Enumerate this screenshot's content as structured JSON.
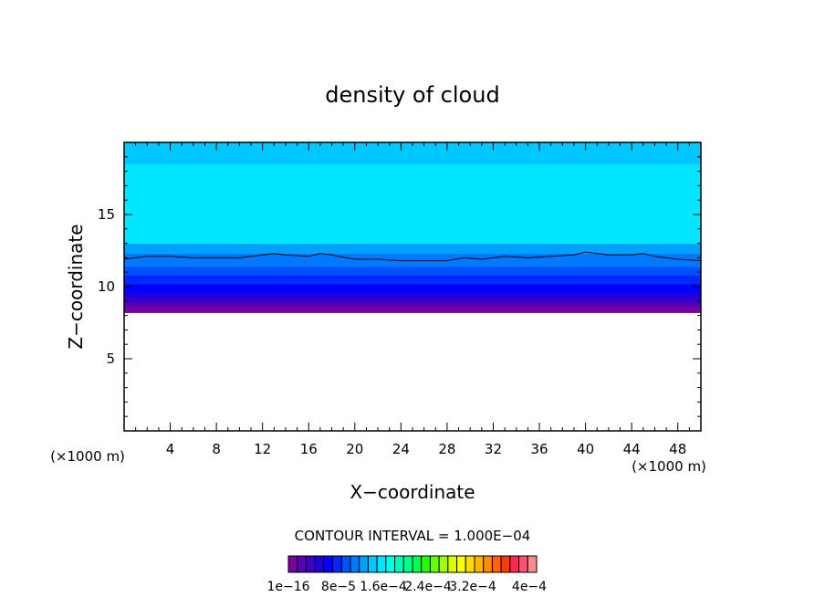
{
  "chart_data": {
    "type": "heatmap",
    "title": "density of cloud",
    "xlabel": "X−coordinate",
    "ylabel": "Z−coordinate",
    "x_unit_label": "(×1000 m)",
    "y_unit_label": "(×1000 m)",
    "xlim": [
      0,
      50
    ],
    "ylim": [
      0,
      20
    ],
    "xticks": [
      4,
      8,
      12,
      16,
      20,
      24,
      28,
      32,
      36,
      40,
      44,
      48
    ],
    "yticks": [
      5,
      10,
      15
    ],
    "grid": false,
    "contour_interval_label": "CONTOUR INTERVAL = 1.000E−04",
    "colorbar": {
      "colors": [
        "#7a00a0",
        "#5a00b4",
        "#3c00c8",
        "#1e00dc",
        "#0000ff",
        "#0028ff",
        "#0050ff",
        "#0078ff",
        "#00a0ff",
        "#00c8ff",
        "#00e6ff",
        "#00ffe6",
        "#00ffb4",
        "#00ff8c",
        "#00ff50",
        "#28ff00",
        "#64ff00",
        "#a0ff00",
        "#dcff00",
        "#ffff00",
        "#ffdc00",
        "#ffb400",
        "#ff8c00",
        "#ff6400",
        "#ff3c00",
        "#ff2850",
        "#ff5078",
        "#ff8c8c"
      ],
      "tick_labels": [
        "1e−16",
        "8e−5",
        "1.6e−4",
        "2.4e−4",
        "3.2e−4",
        "4e−4"
      ]
    },
    "bands": [
      {
        "z_bottom": 8.2,
        "z_top": 8.6,
        "color": "#7a00a0"
      },
      {
        "z_bottom": 8.6,
        "z_top": 8.9,
        "color": "#5a00b4"
      },
      {
        "z_bottom": 8.9,
        "z_top": 9.2,
        "color": "#3c00c8"
      },
      {
        "z_bottom": 9.2,
        "z_top": 9.6,
        "color": "#1e00dc"
      },
      {
        "z_bottom": 9.6,
        "z_top": 10.2,
        "color": "#0000ff"
      },
      {
        "z_bottom": 10.2,
        "z_top": 10.8,
        "color": "#0028ff"
      },
      {
        "z_bottom": 10.8,
        "z_top": 11.4,
        "color": "#0050ff"
      },
      {
        "z_bottom": 11.4,
        "z_top": 12.3,
        "color": "#0078ff"
      },
      {
        "z_bottom": 12.3,
        "z_top": 13.0,
        "color": "#00a0ff"
      },
      {
        "z_bottom": 13.0,
        "z_top": 18.5,
        "color": "#00e6ff"
      },
      {
        "z_bottom": 18.5,
        "z_top": 20.0,
        "color": "#00c8ff"
      }
    ],
    "contour_line": {
      "color": "#000000",
      "x": [
        0,
        2,
        4,
        6,
        8,
        10,
        12,
        13,
        14,
        16,
        17,
        18,
        20,
        22,
        24,
        26,
        28,
        29.5,
        31,
        33,
        35,
        37,
        39,
        40,
        42,
        44,
        45,
        46,
        48,
        50
      ],
      "z": [
        11.9,
        12.1,
        12.1,
        12.0,
        12.0,
        12.0,
        12.2,
        12.3,
        12.2,
        12.1,
        12.3,
        12.2,
        11.9,
        11.9,
        11.8,
        11.8,
        11.8,
        12.0,
        11.9,
        12.1,
        12.0,
        12.1,
        12.2,
        12.4,
        12.2,
        12.2,
        12.3,
        12.1,
        11.9,
        11.8
      ]
    }
  }
}
